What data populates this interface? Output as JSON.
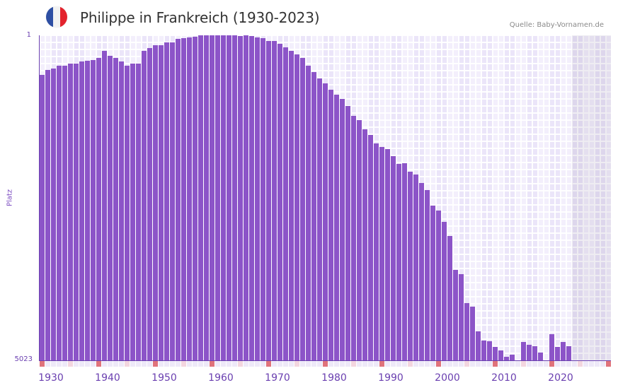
{
  "header": {
    "title": "Philippe in Frankreich (1930-2023)",
    "source": "Quelle: Baby-Vornamen.de",
    "flag_colors": [
      "#2e4fa3",
      "#f2f2f2",
      "#e3232d"
    ],
    "flag_icon": "france-flag-icon"
  },
  "colors": {
    "bar": "#8c54c8",
    "axis": "#6a3fb0",
    "decade_marker": "#e0737b",
    "half_decade_marker": "#f3d6df",
    "plot_bg": "#f3effc"
  },
  "chart_data": {
    "type": "bar",
    "title": "Philippe in Frankreich (1930-2023)",
    "xlabel": "",
    "ylabel": "Platz",
    "y_scale": "log",
    "y_inverted": true,
    "ylim": [
      1,
      5023
    ],
    "y_tick_labels": [
      "1",
      "5023"
    ],
    "x_tick_labels": [
      "1930",
      "1940",
      "1950",
      "1960",
      "1970",
      "1980",
      "1990",
      "2000",
      "2010",
      "2020"
    ],
    "x_range": [
      1930,
      2030
    ],
    "future_shaded_from": 2024,
    "grid": true,
    "legend": null,
    "categories": [
      1930,
      1931,
      1932,
      1933,
      1934,
      1935,
      1936,
      1937,
      1938,
      1939,
      1940,
      1941,
      1942,
      1943,
      1944,
      1945,
      1946,
      1947,
      1948,
      1949,
      1950,
      1951,
      1952,
      1953,
      1954,
      1955,
      1956,
      1957,
      1958,
      1959,
      1960,
      1961,
      1962,
      1963,
      1964,
      1965,
      1966,
      1967,
      1968,
      1969,
      1970,
      1971,
      1972,
      1973,
      1974,
      1975,
      1976,
      1977,
      1978,
      1979,
      1980,
      1981,
      1982,
      1983,
      1984,
      1985,
      1986,
      1987,
      1988,
      1989,
      1990,
      1991,
      1992,
      1993,
      1994,
      1995,
      1996,
      1997,
      1998,
      1999,
      2000,
      2001,
      2002,
      2003,
      2004,
      2005,
      2006,
      2007,
      2008,
      2009,
      2010,
      2011,
      2012,
      2013,
      2014,
      2015,
      2016,
      2017,
      2018,
      2019,
      2020,
      2021,
      2022,
      2023
    ],
    "values": [
      2.8,
      2.5,
      2.4,
      2.2,
      2.2,
      2.1,
      2.1,
      2.0,
      1.95,
      1.9,
      1.8,
      1.5,
      1.7,
      1.8,
      2.0,
      2.2,
      2.1,
      2.1,
      1.5,
      1.4,
      1.3,
      1.3,
      1.2,
      1.2,
      1.1,
      1.08,
      1.05,
      1.03,
      1,
      1,
      1,
      1,
      1,
      1,
      1,
      1.02,
      1,
      1.02,
      1.05,
      1.08,
      1.17,
      1.17,
      1.25,
      1.38,
      1.5,
      1.65,
      1.8,
      2.2,
      2.6,
      3.1,
      3.5,
      4.2,
      4.7,
      5.3,
      6.4,
      8.2,
      9.3,
      11.8,
      13.6,
      17.1,
      18.6,
      19.8,
      23.6,
      28.9,
      28.4,
      35.4,
      38.2,
      47.8,
      57.4,
      87,
      99,
      133,
      192,
      470,
      520,
      1130,
      1220,
      2360,
      3010,
      3060,
      3530,
      3900,
      4580,
      4300,
      5000,
      3080,
      3330,
      3460,
      4090,
      5000,
      2530,
      3530,
      3130,
      3460
    ]
  },
  "markers": {
    "decade_years": [
      1930,
      1940,
      1950,
      1960,
      1970,
      1980,
      1990,
      2000,
      2010,
      2020,
      2030
    ],
    "half_decade_years": [
      1935,
      1945,
      1955,
      1965,
      1975,
      1985,
      1995,
      2005,
      2015,
      2025
    ]
  }
}
